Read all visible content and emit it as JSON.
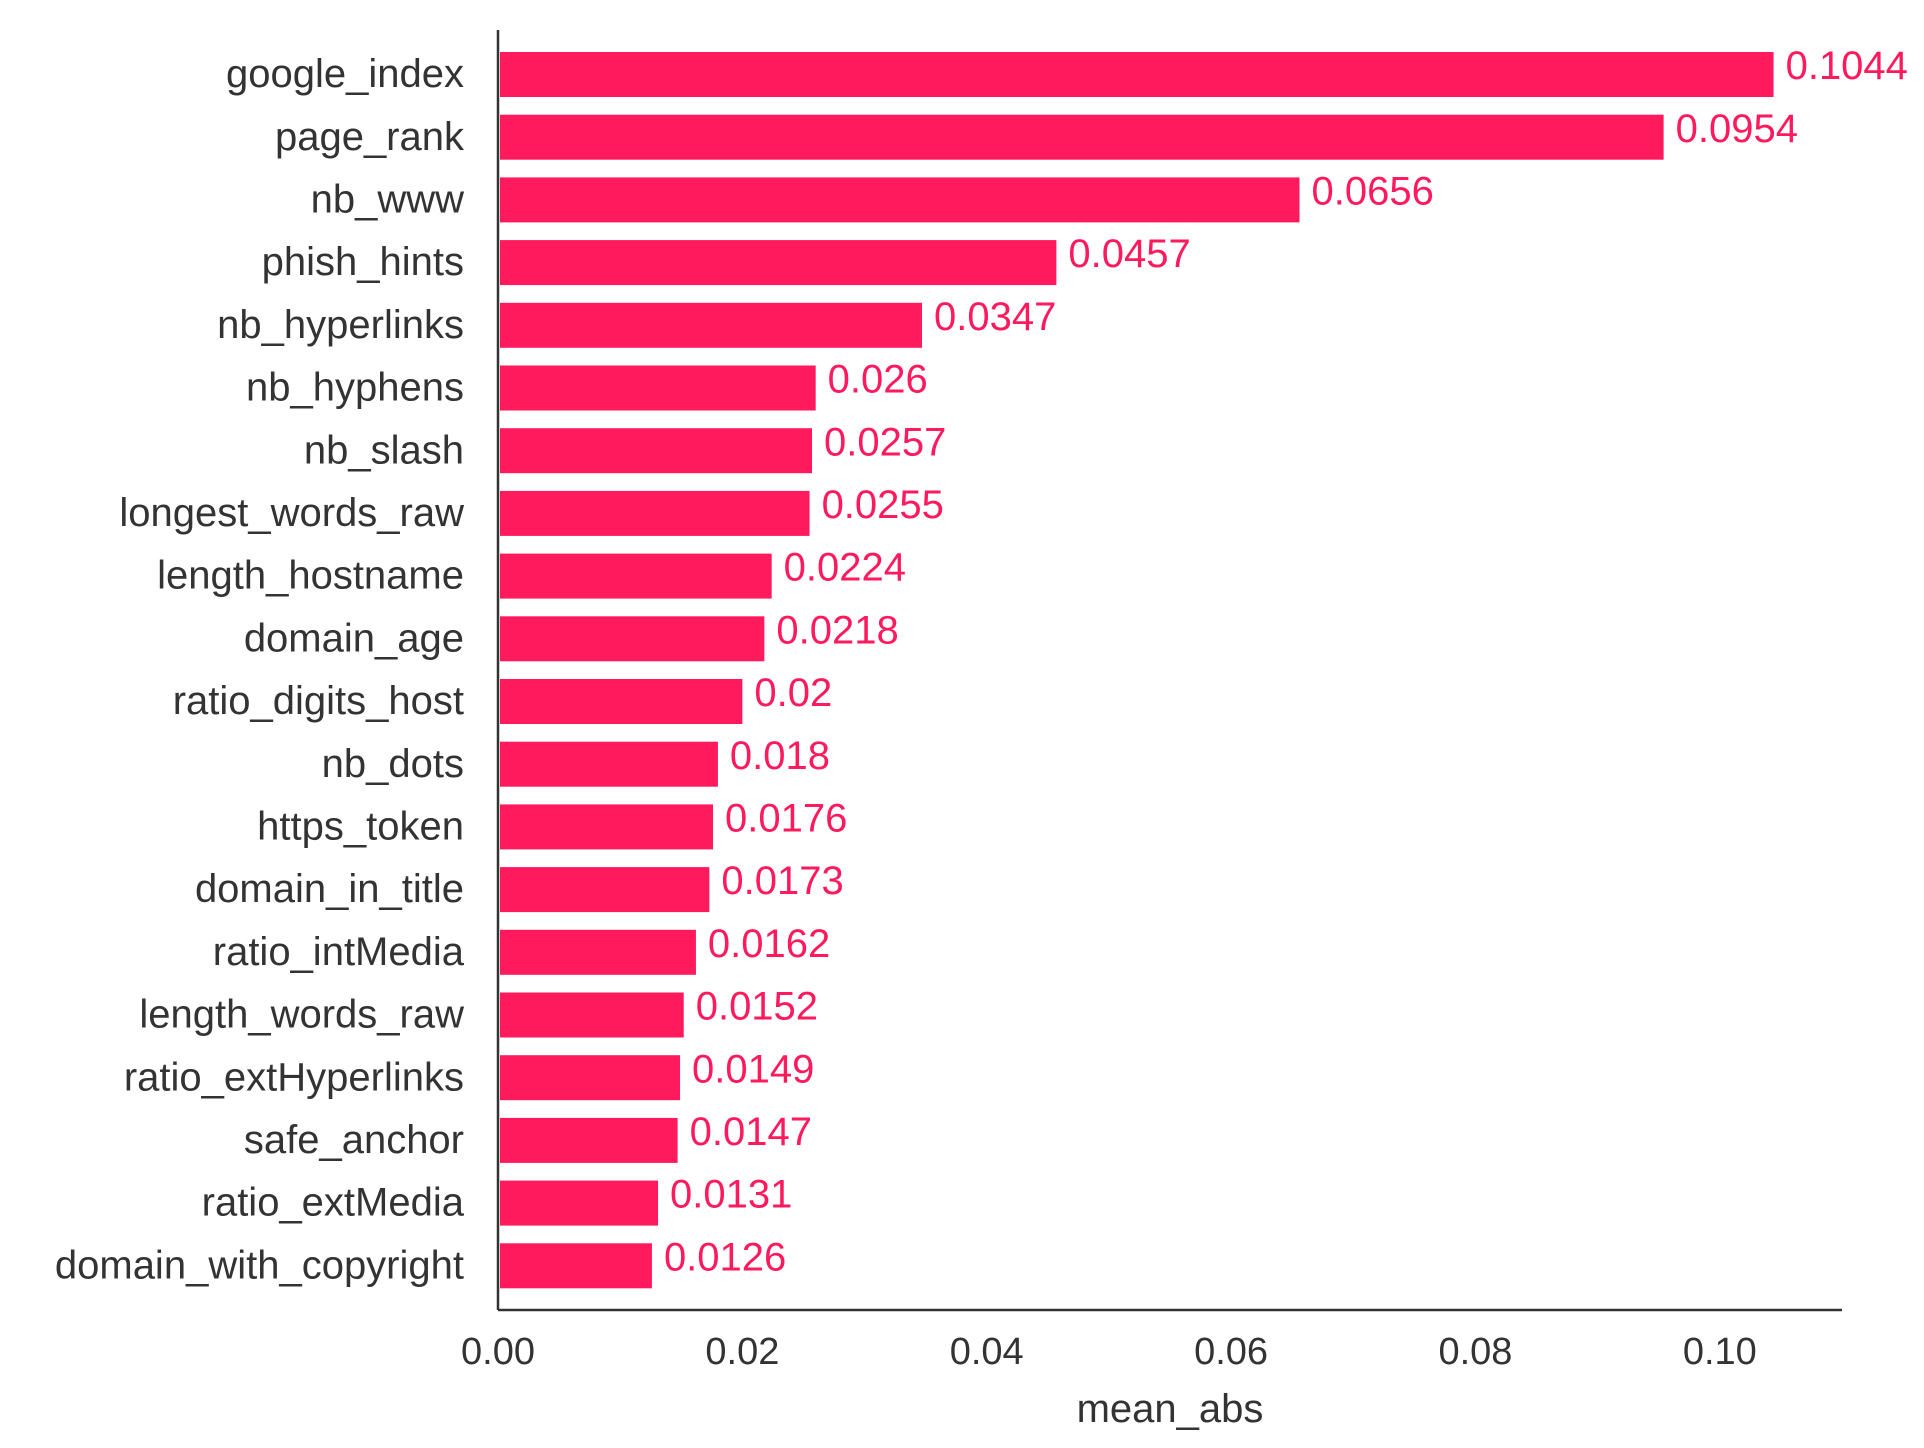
{
  "chart_data": {
    "type": "bar",
    "orientation": "horizontal",
    "categories": [
      "google_index",
      "page_rank",
      "nb_www",
      "phish_hints",
      "nb_hyperlinks",
      "nb_hyphens",
      "nb_slash",
      "longest_words_raw",
      "length_hostname",
      "domain_age",
      "ratio_digits_host",
      "nb_dots",
      "https_token",
      "domain_in_title",
      "ratio_intMedia",
      "length_words_raw",
      "ratio_extHyperlinks",
      "safe_anchor",
      "ratio_extMedia",
      "domain_with_copyright"
    ],
    "values": [
      0.1044,
      0.0954,
      0.0656,
      0.0457,
      0.0347,
      0.026,
      0.0257,
      0.0255,
      0.0224,
      0.0218,
      0.02,
      0.018,
      0.0176,
      0.0173,
      0.0162,
      0.0152,
      0.0149,
      0.0147,
      0.0131,
      0.0126
    ],
    "data_labels": [
      "0.1044",
      "0.0954",
      "0.0656",
      "0.0457",
      "0.0347",
      "0.026",
      "0.0257",
      "0.0255",
      "0.0224",
      "0.0218",
      "0.02",
      "0.018",
      "0.0176",
      "0.0173",
      "0.0162",
      "0.0152",
      "0.0149",
      "0.0147",
      "0.0131",
      "0.0126"
    ],
    "xlabel": "mean_abs",
    "ylabel": "",
    "title": "",
    "xlim": [
      0,
      0.11
    ],
    "xticks": [
      0.0,
      0.02,
      0.04,
      0.06,
      0.08,
      0.1
    ],
    "xtick_labels": [
      "0.00",
      "0.02",
      "0.04",
      "0.06",
      "0.08",
      "0.10"
    ],
    "grid": false,
    "legend": "none",
    "bar_color": "#ff1a5e",
    "label_color": "#ff1a5e",
    "text_color": "#333333",
    "axis_color": "#333333"
  }
}
